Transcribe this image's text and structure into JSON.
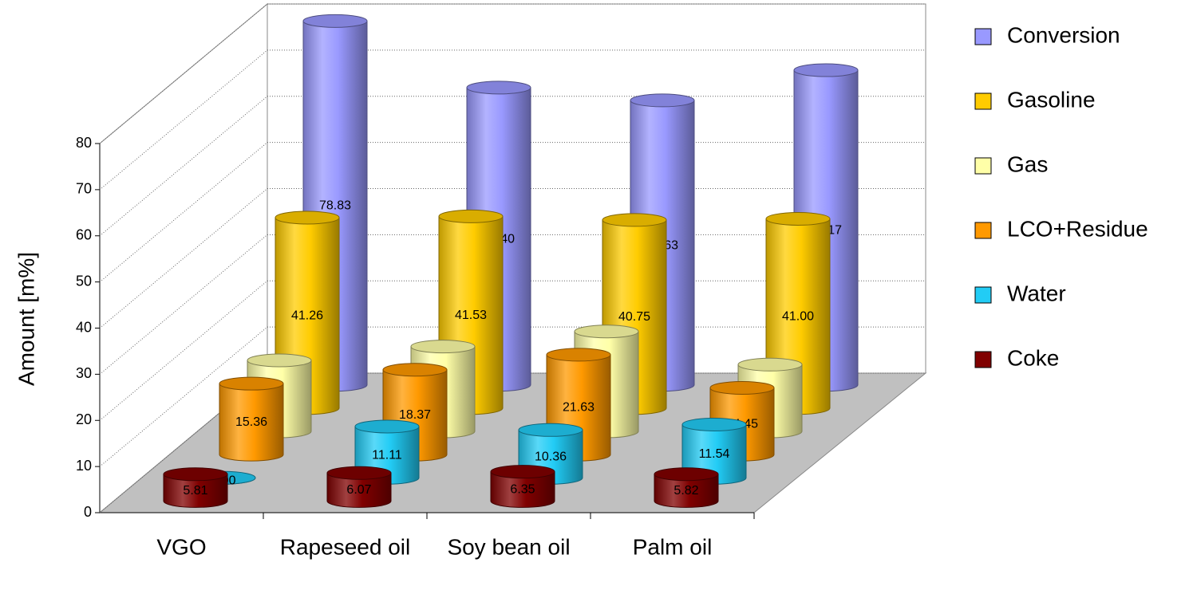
{
  "chart_data": {
    "type": "bar3d",
    "ylabel": "Amount [m%]",
    "categories": [
      "VGO",
      "Rapeseed oil",
      "Soy bean oil",
      "Palm oil"
    ],
    "ylim": [
      0,
      80
    ],
    "yticks": [
      0,
      10,
      20,
      30,
      40,
      50,
      60,
      70,
      80
    ],
    "grid": true,
    "series": [
      {
        "name": "Conversion",
        "color": "#9999ff",
        "values": [
          78.83,
          64.4,
          61.63,
          68.17
        ],
        "value_labels": [
          "78.83",
          "64.40",
          "61.63",
          "68.17"
        ]
      },
      {
        "name": "Gasoline",
        "color": "#ffcc00",
        "values": [
          41.26,
          41.53,
          40.75,
          41.0
        ],
        "value_labels": [
          "41.26",
          "41.53",
          "40.75",
          "41.00"
        ]
      },
      {
        "name": "Gas",
        "color": "#ffffa8",
        "values": [
          15.36,
          18.37,
          21.63,
          14.45
        ],
        "value_labels": [
          "15.36",
          "18.37",
          "21.63",
          "14.45"
        ]
      },
      {
        "name": "LCO+Residue",
        "color": "#ff9900",
        "values": [
          15.36,
          18.37,
          21.63,
          14.45
        ],
        "value_labels": [
          "15.36",
          "18.37",
          "21.63",
          "14.45"
        ]
      },
      {
        "name": "Water",
        "color": "#22ccf5",
        "values": [
          0,
          11.11,
          10.36,
          11.54
        ],
        "value_labels": [
          "0.00",
          "11.11",
          "10.36",
          "11.54"
        ]
      },
      {
        "name": "Coke",
        "color": "#800000",
        "values": [
          5.81,
          6.07,
          6.35,
          5.82
        ],
        "value_labels": [
          "5.81",
          "6.07",
          "6.35",
          "5.82"
        ]
      }
    ]
  }
}
